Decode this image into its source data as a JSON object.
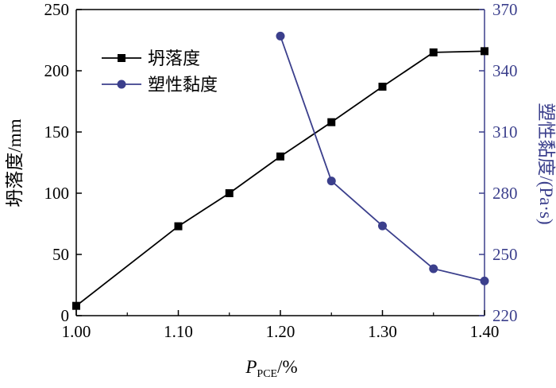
{
  "chart_data": {
    "type": "line",
    "x": [
      1.0,
      1.1,
      1.15,
      1.2,
      1.25,
      1.3,
      1.35,
      1.4
    ],
    "xlabel_main": "P",
    "xlabel_sub": "PCE",
    "xlabel_unit": "/%",
    "xticks": [
      "1.00",
      "1.10",
      "1.20",
      "1.30",
      "1.40"
    ],
    "xlim": [
      1.0,
      1.4
    ],
    "ylabel": "坍落度/mm",
    "ylim": [
      0,
      250
    ],
    "yticks": [
      "0",
      "50",
      "100",
      "150",
      "200",
      "250"
    ],
    "y2label": "塑性黏度/(Pa·s)",
    "y2lim": [
      220,
      370
    ],
    "y2ticks": [
      "220",
      "250",
      "280",
      "310",
      "340",
      "370"
    ],
    "legend_position": "top-left",
    "series": [
      {
        "name": "坍落度",
        "axis": "left",
        "marker": "square",
        "color": "#000000",
        "x": [
          1.0,
          1.1,
          1.15,
          1.2,
          1.25,
          1.3,
          1.35,
          1.4
        ],
        "values": [
          8,
          73,
          100,
          130,
          158,
          187,
          215,
          216
        ]
      },
      {
        "name": "塑性黏度",
        "axis": "right",
        "marker": "circle",
        "color": "#3b3f8c",
        "x": [
          1.2,
          1.25,
          1.3,
          1.35,
          1.4
        ],
        "values": [
          357,
          286,
          264,
          243,
          237
        ]
      }
    ]
  }
}
